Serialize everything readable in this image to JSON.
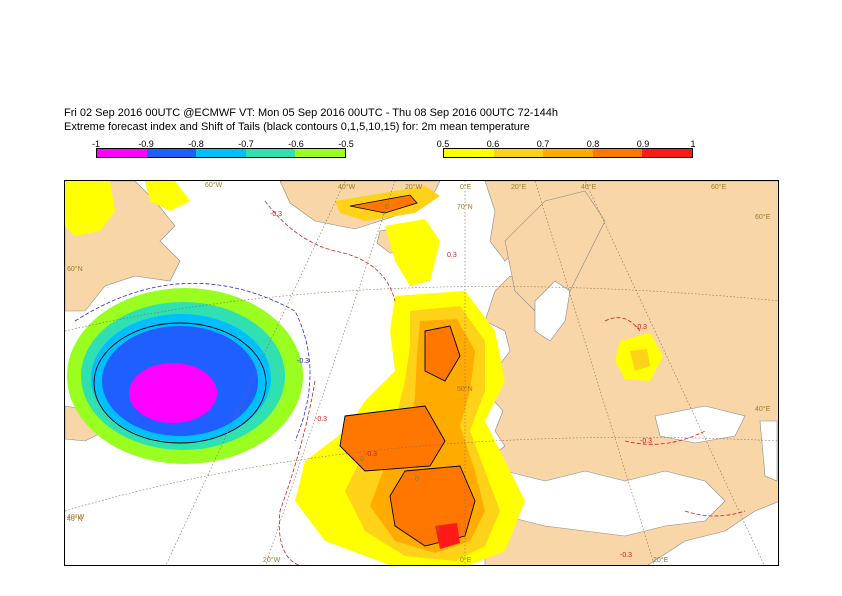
{
  "header": {
    "line1": "Fri 02 Sep 2016 00UTC @ECMWF VT: Mon 05 Sep 2016 00UTC - Thu 08 Sep 2016 00UTC  72-144h",
    "line2": "Extreme forecast index and Shift of Tails (black contours 0,1,5,10,15) for: 2m mean temperature"
  },
  "legend_negative": {
    "ticks": [
      "-1",
      "-0.9",
      "-0.8",
      "-0.7",
      "-0.6",
      "-0.5"
    ],
    "colors": [
      "#ff00ff",
      "#1f5fff",
      "#00bfff",
      "#30e0b0",
      "#9aff20"
    ]
  },
  "legend_positive": {
    "ticks": [
      "0.5",
      "0.6",
      "0.7",
      "0.8",
      "0.9",
      "1"
    ],
    "colors": [
      "#ffff00",
      "#ffd21a",
      "#ffab00",
      "#ff7700",
      "#ff1a1a"
    ]
  },
  "map": {
    "longitude_labels": [
      "60°W",
      "40°W",
      "20°W",
      "0°E",
      "20°E",
      "40°E",
      "60°E",
      "20°W",
      "0°E",
      "20°E"
    ],
    "latitude_labels": [
      "60°N",
      "40°N",
      "60°E",
      "40°E",
      "70°N",
      "50°N",
      "40°W"
    ],
    "contour_labels": [
      "-0.3",
      "-0.3",
      "-0.3",
      "0.3",
      "-0.3",
      "-0.3",
      "-0.3"
    ],
    "sot_labels": [
      "0",
      "0",
      "0",
      "0"
    ]
  }
}
